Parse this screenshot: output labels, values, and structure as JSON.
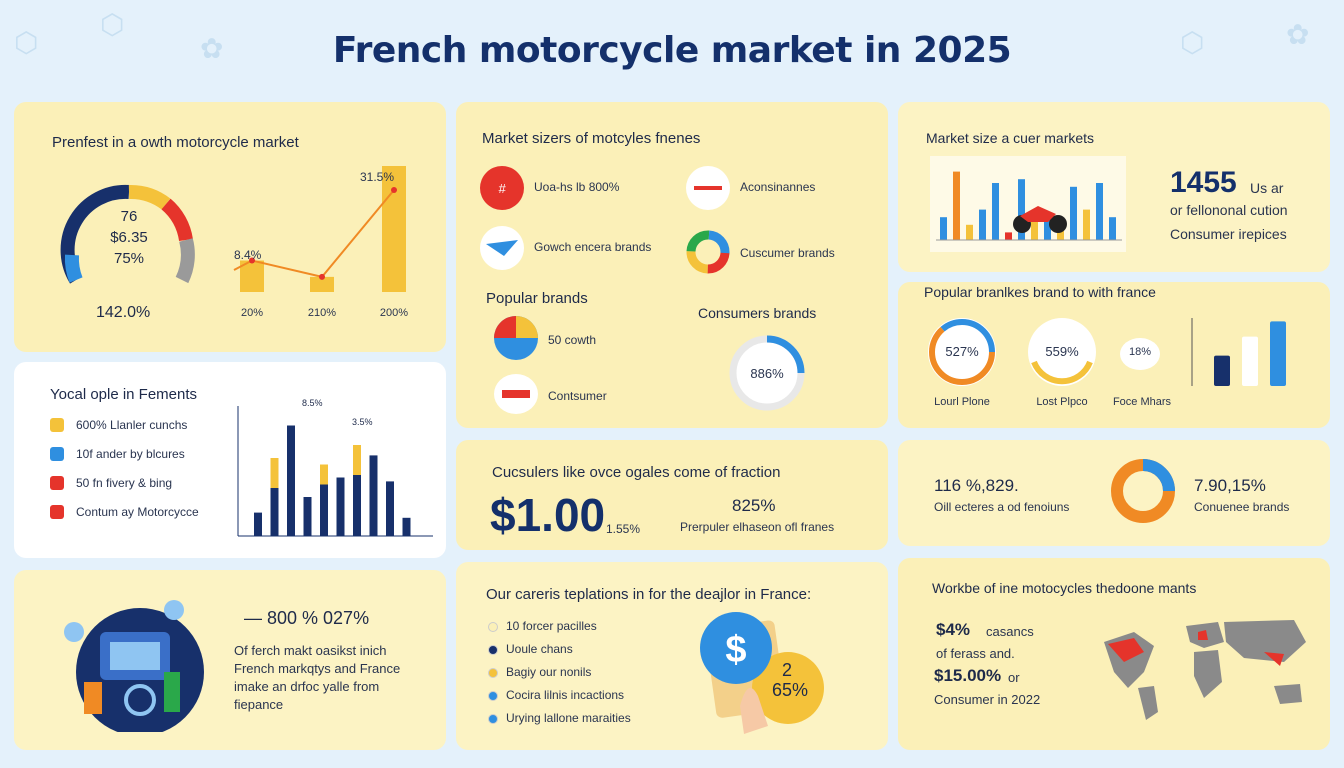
{
  "title": "French motorcycle market in 2025",
  "colors": {
    "navy": "#17306b",
    "blue": "#2f8fe0",
    "yellow": "#f4c23a",
    "orange": "#f08a24",
    "red": "#e5342b",
    "green": "#2aa84a",
    "gray": "#9a9a9a"
  },
  "card1": {
    "heading": "Prenfest in a owth motorcycle market",
    "gauge": {
      "line1": "76",
      "line2": "$6.35",
      "line3": "75%",
      "bottom": "142.0%"
    },
    "labels": {
      "top": "31.5%",
      "mid": "8.4%"
    },
    "ticks": [
      "20%",
      "210%",
      "200%"
    ]
  },
  "card2": {
    "heading": "Market sizers of motcyles fnenes",
    "items": [
      {
        "label": "Uoa-hs lb 800%",
        "icon": "logo-red-icon"
      },
      {
        "label": "Aconsinannes",
        "icon": "logo-honda-icon"
      },
      {
        "label": "Gowch encera brands",
        "icon": "logo-wing-icon"
      },
      {
        "label": "Cuscumer brands",
        "icon": "logo-ring-icon"
      }
    ],
    "popular_heading": "Popular brands",
    "popular": [
      {
        "label": "50 cowth"
      },
      {
        "label": "Contsumer"
      }
    ],
    "consumers_heading": "Consumers brands",
    "donut_value": "886%"
  },
  "card3": {
    "heading": "Market size a cuer markets",
    "stat": "1455",
    "stat_suffix": "Us ar",
    "line2": "or fellononal cution",
    "line3": "Consumer irepices"
  },
  "card4": {
    "heading": "Yocal ople in Fements",
    "legend": [
      {
        "label": "600% Llanler cunchs",
        "color": "#f4c23a"
      },
      {
        "label": "10f ander by blcures",
        "color": "#2f8fe0"
      },
      {
        "label": "50 fn fivery & bing",
        "color": "#e5342b"
      },
      {
        "label": "Contum ay Motorcycce",
        "color": "#e5342b"
      }
    ],
    "bar_labels": {
      "a": "8.5%",
      "b": "3.5%"
    }
  },
  "card5": {
    "heading": "Popular branlkes brand to with france",
    "rings": [
      {
        "value": "527%",
        "label": "Lourl Plone"
      },
      {
        "value": "559%",
        "label": "Lost Plpco"
      },
      {
        "value": "18%",
        "label": "Foce Mhars"
      }
    ]
  },
  "card6": {
    "heading": "Cucsulers like ovce ogales come of fraction",
    "big": "$1.00",
    "big_suffix": "1.55%",
    "pct": "825%",
    "sub": "Prerpuler elhaseon ofl franes"
  },
  "card7": {
    "left_value": "116 %,829.",
    "left_sub": "Oill ecteres a od fenoiuns",
    "right_value": "7.90,15%",
    "right_sub": "Conuenee brands"
  },
  "card8": {
    "value": "— 800 % 027%",
    "lines": [
      "Of ferch makt oasikst inich",
      "French markqtys and France",
      "imake an drfoc yalle from",
      "fiepance"
    ]
  },
  "card9": {
    "heading": "Our careris teplations in for the deajlor in France:",
    "items": [
      {
        "label": "10 forcer pacilles",
        "color": "#fbf0b8"
      },
      {
        "label": "Uoule chans",
        "color": "#17306b"
      },
      {
        "label": "Bagiy our nonils",
        "color": "#f4c23a"
      },
      {
        "label": "Cocira lilnis incactions",
        "color": "#2f8fe0"
      },
      {
        "label": "Urying lallone maraities",
        "color": "#2f8fe0"
      }
    ],
    "coin": "2",
    "coin_pct": "65%"
  },
  "card10": {
    "heading": "Workbe of ine motocycles thedoone mants",
    "l1": "$4%",
    "l1b": "casancs",
    "l2": "of ferass and.",
    "l3": "$15.00%",
    "l3b": "or",
    "l4": "Consumer in 2022"
  },
  "chart_data": [
    {
      "type": "bar",
      "title": "",
      "categories": [
        "20%",
        "210%",
        "200%"
      ],
      "values": [
        25,
        12,
        100
      ],
      "xlabel": "",
      "ylabel": ""
    },
    {
      "type": "bar",
      "title": "",
      "x": [
        1,
        2,
        3,
        4,
        5,
        6,
        7,
        8,
        9,
        10
      ],
      "series": [
        {
          "values": [
            18,
            60,
            85,
            30,
            55,
            45,
            70,
            62,
            42,
            14
          ]
        }
      ],
      "ylim": [
        0,
        100
      ]
    },
    {
      "type": "bar",
      "title": "",
      "x": [
        1,
        2,
        3,
        4,
        5,
        6,
        7,
        8,
        9,
        10,
        11,
        12,
        13,
        14
      ],
      "series": [
        {
          "values": [
            30,
            90,
            20,
            40,
            75,
            10,
            80,
            25,
            35,
            15,
            70,
            40,
            75,
            30
          ]
        }
      ]
    },
    {
      "type": "bar",
      "title": "",
      "x": [
        1,
        2,
        3
      ],
      "series": [
        {
          "values": [
            40,
            65,
            85
          ]
        }
      ]
    }
  ]
}
